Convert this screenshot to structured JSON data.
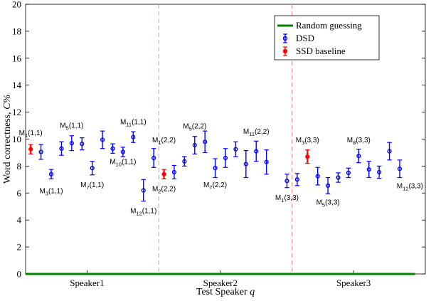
{
  "chart_data": {
    "type": "scatter",
    "title": "",
    "xlabel": "Test Speaker",
    "xlabel_symbol": "q",
    "ylabel": "Word correctness,",
    "ylabel_symbol": "C%",
    "ylim": [
      0,
      20
    ],
    "yticks": [
      0,
      2,
      4,
      6,
      8,
      10,
      12,
      14,
      16,
      18,
      20
    ],
    "xlim": [
      0.5,
      39.5
    ],
    "groups": [
      {
        "label": "Speaker1",
        "x_center": 6.5
      },
      {
        "label": "Speaker2",
        "x_center": 19.5
      },
      {
        "label": "Speaker3",
        "x_center": 32.5
      }
    ],
    "group_separators": [
      13,
      26
    ],
    "grid": false,
    "legend": {
      "placement": "top-right",
      "entries": [
        "Random guessing",
        "DSD",
        "SSD baseline"
      ]
    },
    "random_guessing": {
      "name": "Random guessing",
      "value": 0,
      "x_range": [
        0.5,
        38.5
      ],
      "color": "#008000"
    },
    "series": [
      {
        "name": "DSD",
        "color": "#0000ff",
        "points": [
          {
            "x": 2,
            "y": 9.05,
            "err": 0.55
          },
          {
            "x": 3,
            "y": 7.4,
            "err": 0.35
          },
          {
            "x": 4,
            "y": 9.3,
            "err": 0.5
          },
          {
            "x": 5,
            "y": 9.7,
            "err": 0.55
          },
          {
            "x": 6,
            "y": 9.65,
            "err": 0.45
          },
          {
            "x": 7,
            "y": 7.85,
            "err": 0.5
          },
          {
            "x": 8,
            "y": 9.95,
            "err": 0.65
          },
          {
            "x": 9,
            "y": 9.3,
            "err": 0.35
          },
          {
            "x": 10,
            "y": 9.05,
            "err": 0.35
          },
          {
            "x": 11,
            "y": 10.15,
            "err": 0.4
          },
          {
            "x": 12,
            "y": 6.2,
            "err": 0.8
          },
          {
            "x": 13,
            "y": 8.6,
            "err": 0.7
          },
          {
            "x": 15,
            "y": 7.55,
            "err": 0.5
          },
          {
            "x": 16,
            "y": 8.35,
            "err": 0.35
          },
          {
            "x": 17,
            "y": 9.55,
            "err": 0.65
          },
          {
            "x": 18,
            "y": 9.8,
            "err": 0.8
          },
          {
            "x": 19,
            "y": 7.85,
            "err": 0.7
          },
          {
            "x": 20,
            "y": 8.6,
            "err": 0.7
          },
          {
            "x": 21,
            "y": 9.25,
            "err": 0.55
          },
          {
            "x": 22,
            "y": 8.15,
            "err": 1.0
          },
          {
            "x": 23,
            "y": 9.1,
            "err": 0.75
          },
          {
            "x": 24,
            "y": 8.3,
            "err": 0.9
          },
          {
            "x": 26,
            "y": 6.9,
            "err": 0.5
          },
          {
            "x": 27,
            "y": 7.0,
            "err": 0.45
          },
          {
            "x": 29,
            "y": 7.25,
            "err": 0.65
          },
          {
            "x": 30,
            "y": 6.55,
            "err": 0.6
          },
          {
            "x": 31,
            "y": 7.15,
            "err": 0.35
          },
          {
            "x": 32,
            "y": 7.5,
            "err": 0.35
          },
          {
            "x": 33,
            "y": 8.75,
            "err": 0.5
          },
          {
            "x": 34,
            "y": 7.75,
            "err": 0.6
          },
          {
            "x": 35,
            "y": 7.55,
            "err": 0.45
          },
          {
            "x": 36,
            "y": 9.1,
            "err": 0.65
          },
          {
            "x": 37,
            "y": 7.8,
            "err": 0.65
          }
        ]
      },
      {
        "name": "SSD baseline",
        "color": "#ff0000",
        "points": [
          {
            "x": 1,
            "y": 9.25,
            "err": 0.35
          },
          {
            "x": 14,
            "y": 7.4,
            "err": 0.35
          },
          {
            "x": 28,
            "y": 8.7,
            "err": 0.5
          }
        ]
      }
    ],
    "annotations": [
      {
        "base": "M",
        "sub": "1",
        "args": "(1,1)",
        "x": 1,
        "y": 10.3
      },
      {
        "base": "M",
        "sub": "3",
        "args": "(1,1)",
        "x": 3,
        "y": 6.0
      },
      {
        "base": "M",
        "sub": "5",
        "args": "(1,1)",
        "x": 5,
        "y": 10.85
      },
      {
        "base": "M",
        "sub": "7",
        "args": "(1,1)",
        "x": 7,
        "y": 6.45
      },
      {
        "base": "M",
        "sub": "10",
        "args": "(1,1)",
        "x": 10,
        "y": 8.15
      },
      {
        "base": "M",
        "sub": "11",
        "args": "(1,1)",
        "x": 11,
        "y": 11.1
      },
      {
        "base": "M",
        "sub": "12",
        "args": "(1,1)",
        "x": 12,
        "y": 4.5
      },
      {
        "base": "M",
        "sub": "1",
        "args": "(2,2)",
        "x": 14,
        "y": 9.75
      },
      {
        "base": "M",
        "sub": "2",
        "args": "(2,2)",
        "x": 14,
        "y": 6.15
      },
      {
        "base": "M",
        "sub": "5",
        "args": "(2,2)",
        "x": 17,
        "y": 10.8
      },
      {
        "base": "M",
        "sub": "7",
        "args": "(2,2)",
        "x": 19,
        "y": 6.45
      },
      {
        "base": "M",
        "sub": "11",
        "args": "(2,2)",
        "x": 23,
        "y": 10.4
      },
      {
        "base": "M",
        "sub": "1",
        "args": "(3,3)",
        "x": 26,
        "y": 5.5
      },
      {
        "base": "M",
        "sub": "3",
        "args": "(3,3)",
        "x": 28,
        "y": 9.75
      },
      {
        "base": "M",
        "sub": "5",
        "args": "(3,3)",
        "x": 30,
        "y": 5.15
      },
      {
        "base": "M",
        "sub": "8",
        "args": "(3,3)",
        "x": 33,
        "y": 9.75
      },
      {
        "base": "M",
        "sub": "12",
        "args": "(3,3)",
        "x": 38,
        "y": 6.35
      }
    ]
  }
}
